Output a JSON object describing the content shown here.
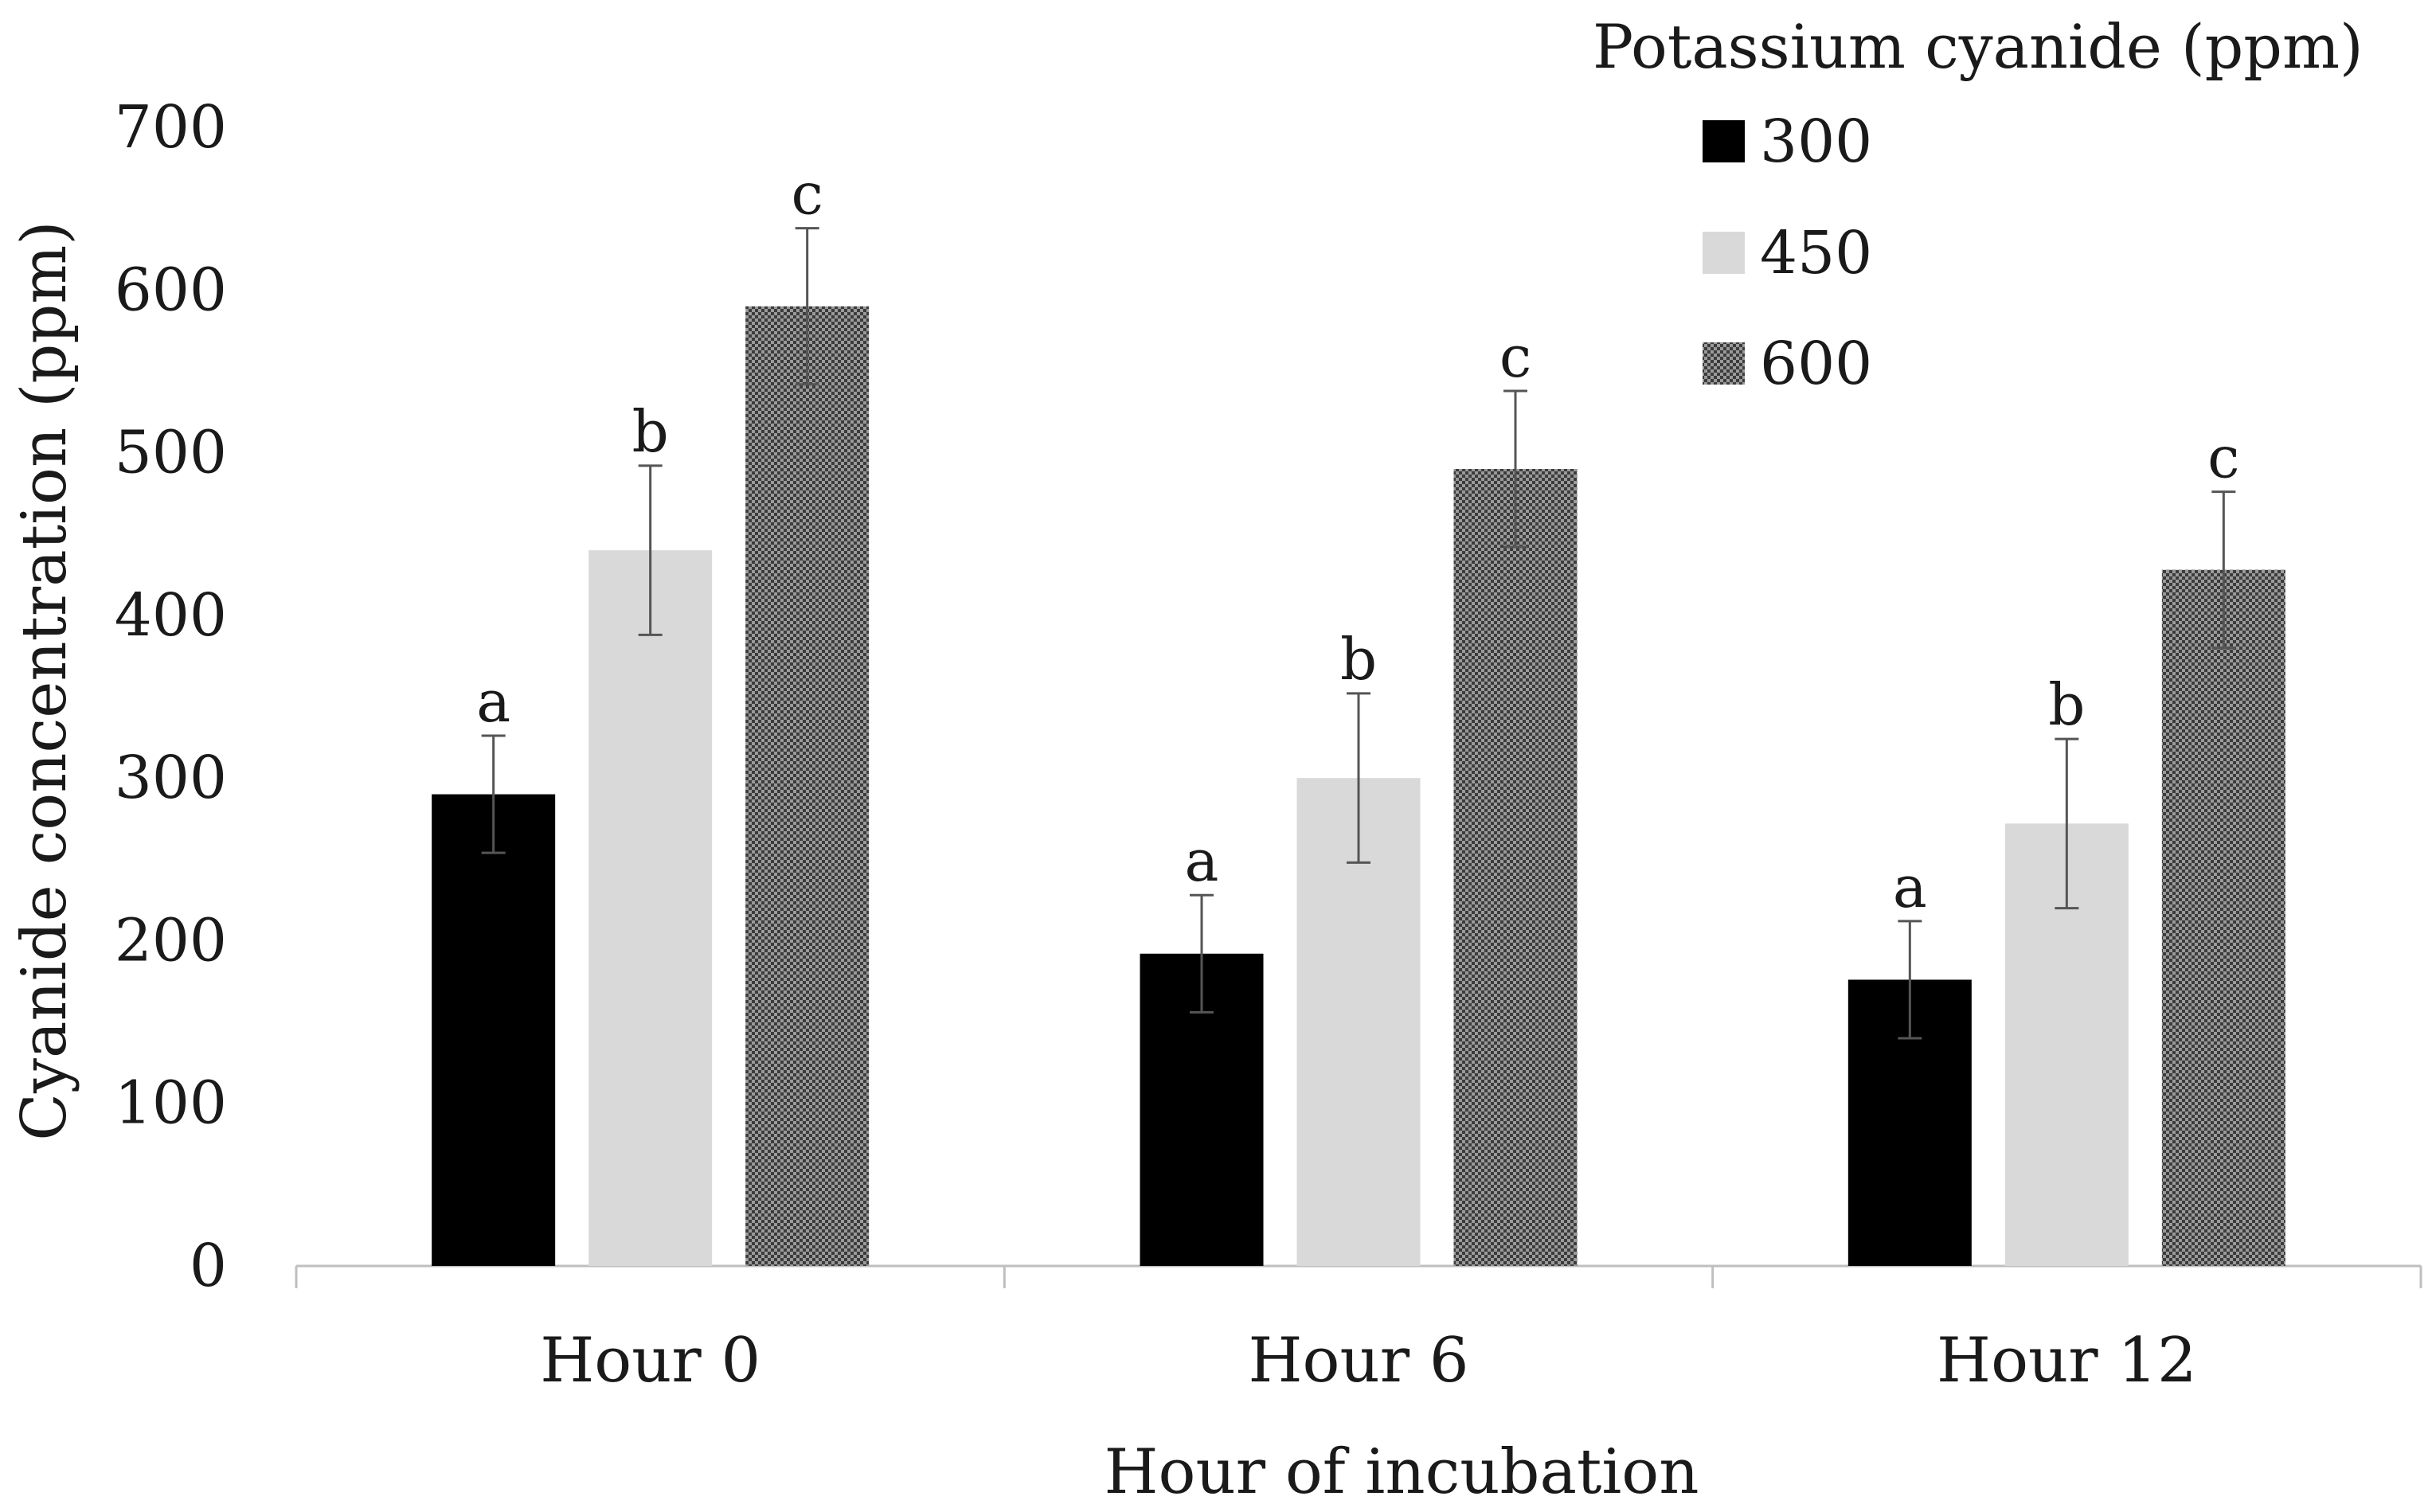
{
  "chart_data": {
    "type": "bar",
    "title": "",
    "xlabel": "Hour of incubation",
    "ylabel": "Cyanide concentration (ppm)",
    "ylim": [
      0,
      700
    ],
    "yticks": [
      0,
      100,
      200,
      300,
      400,
      500,
      600,
      700
    ],
    "categories": [
      "Hour 0",
      "Hour 6",
      "Hour 12"
    ],
    "legend_title": "Potassium cyanide (ppm)",
    "legend_position": "top-right",
    "grid": false,
    "series": [
      {
        "name": "300",
        "color": "#000000",
        "pattern": "solid",
        "values": [
          290,
          192,
          176
        ],
        "errors": [
          36,
          36,
          36
        ],
        "letters": [
          "a",
          "a",
          "a"
        ]
      },
      {
        "name": "450",
        "color": "#d9d9d9",
        "pattern": "solid",
        "values": [
          440,
          300,
          272
        ],
        "errors": [
          52,
          52,
          52
        ],
        "letters": [
          "b",
          "b",
          "b"
        ]
      },
      {
        "name": "600",
        "color": "#5a5a5a",
        "pattern": "dotted",
        "values": [
          590,
          490,
          428
        ],
        "errors": [
          48,
          48,
          48
        ],
        "letters": [
          "c",
          "c",
          "c"
        ]
      }
    ]
  }
}
